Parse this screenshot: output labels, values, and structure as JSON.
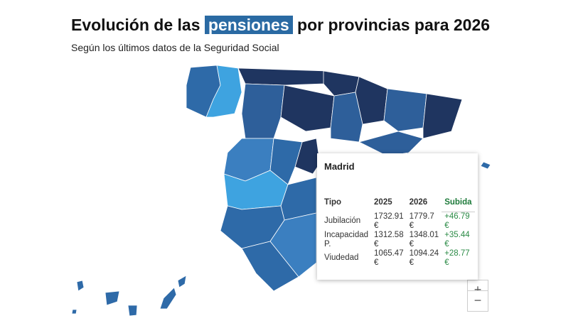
{
  "header": {
    "title_before": "Evolución de las",
    "title_highlight": "pensiones",
    "title_after": "por provincias para 2026",
    "subtitle": "Según los últimos datos de la Seguridad Social"
  },
  "colors": {
    "highlight": "#2a6aa3",
    "dark": "#1f3560",
    "mid": "#2e5f9a",
    "light": "#3ea3e0",
    "positive": "#2a8a45"
  },
  "tooltip": {
    "province": "Madrid",
    "headers": [
      "Tipo",
      "2025",
      "2026",
      "Subida"
    ],
    "rows": [
      [
        "Jubilación",
        "1732.91 €",
        "1779.7 €",
        "+46.79 €"
      ],
      [
        "Incapacidad P.",
        "1312.58 €",
        "1348.01 €",
        "+35.44 €"
      ],
      [
        "Viudedad",
        "1065.47 €",
        "1094.24 €",
        "+28.77 €"
      ]
    ]
  },
  "zoom": {
    "in": "+",
    "out": "−"
  }
}
